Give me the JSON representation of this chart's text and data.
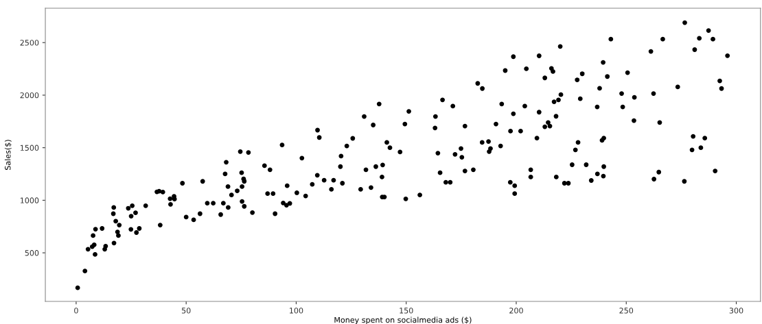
{
  "chart_data": {
    "type": "scatter",
    "xlabel": "Money spent on socialmedia ads ($)",
    "ylabel": "Sales($)",
    "xlim": [
      -14,
      311
    ],
    "ylim": [
      38,
      2827
    ],
    "xticks": [
      0,
      50,
      100,
      150,
      200,
      250,
      300
    ],
    "yticks": [
      500,
      1000,
      1500,
      2000,
      2500
    ],
    "marker": "circle",
    "grid": false,
    "series": [
      {
        "color": "#000000",
        "x": [
          0.7,
          4.0,
          5.4,
          7.3,
          8.2,
          8.6,
          7.7,
          8.8,
          11.8,
          13.0,
          13.4,
          17.1,
          16.9,
          18.0,
          19.6,
          18.8,
          19.2,
          17.2,
          23.7,
          25.5,
          25.0,
          27.0,
          24.9,
          28.7,
          27.4,
          31.6,
          36.7,
          37.7,
          39.4,
          38.2,
          42.9,
          44.5,
          42.7,
          44.7,
          48.3,
          50.0,
          53.4,
          56.3,
          57.5,
          59.6,
          62.3,
          65.7,
          66.9,
          69.1,
          68.2,
          67.7,
          69.0,
          70.6,
          73.2,
          75.2,
          76.1,
          76.4,
          75.4,
          75.4,
          76.4,
          80.1,
          74.6,
          78.3,
          85.6,
          88.1,
          87.0,
          89.5,
          90.4,
          94.1,
          95.6,
          97.1,
          95.9,
          100.3,
          102.6,
          104.3,
          107.3,
          109.6,
          112.7,
          116.0,
          117.0,
          120.4,
          120.1,
          121.0,
          129.3,
          131.7,
          134.0,
          136.2,
          139.3,
          139.0,
          139.1,
          140.1,
          147.2,
          149.8,
          156.2,
          164.4,
          165.4,
          168.0,
          170.0,
          172.2,
          175.3,
          176.7,
          180.5,
          187.7,
          197.3,
          199.3,
          199.3,
          206.6,
          206.6,
          218.2,
          221.9,
          223.7,
          225.4,
          231.8,
          234.1,
          236.9,
          239.6,
          239.8,
          262.6,
          264.8,
          276.4,
          290.4,
          93.6,
          109.7,
          110.5,
          123.0,
          125.7,
          130.9,
          135.0,
          137.7,
          141.2,
          142.6,
          149.4,
          151.2,
          163.1,
          163.3,
          166.5,
          171.2,
          174.9,
          176.7,
          182.5,
          184.6,
          184.5,
          187.4,
          188.3,
          192.9,
          190.8,
          193.4,
          195.0,
          198.7,
          198.7,
          197.4,
          204.6,
          210.4,
          203.9,
          202.0,
          209.4,
          210.4,
          213.0,
          216.0,
          216.7,
          220.0,
          220.3,
          219.2,
          217.2,
          218.1,
          214.5,
          213.0,
          215.3,
          226.9,
          228.1,
          227.7,
          230.0,
          229.1,
          237.9,
          236.8,
          239.5,
          241.4,
          243.0,
          239.0,
          239.8,
          247.9,
          248.4,
          250.6,
          253.7,
          253.5,
          261.2,
          262.4,
          265.2,
          266.6,
          273.4,
          276.6,
          281.1,
          283.2,
          287.4,
          289.4,
          296.0,
          292.5,
          293.3,
          280.4,
          285.7,
          279.9,
          283.9
        ],
        "values": [
          167,
          327,
          534,
          558,
          576,
          485,
          664,
          725,
          732,
          534,
          563,
          931,
          872,
          801,
          764,
          699,
          664,
          593,
          924,
          948,
          849,
          881,
          723,
          732,
          693,
          948,
          1080,
          1086,
          1078,
          764,
          961,
          1037,
          1015,
          1011,
          1162,
          840,
          814,
          872,
          1180,
          972,
          972,
          864,
          972,
          931,
          1362,
          1251,
          1130,
          1050,
          1089,
          1262,
          1203,
          1180,
          1130,
          989,
          942,
          883,
          1463,
          1455,
          1329,
          1290,
          1063,
          1063,
          872,
          974,
          953,
          970,
          1138,
          1071,
          1401,
          1041,
          1151,
          1238,
          1190,
          1104,
          1190,
          1420,
          1320,
          1162,
          1104,
          1290,
          1121,
          1320,
          1336,
          1221,
          1031,
          1031,
          1459,
          1013,
          1050,
          1448,
          1262,
          1171,
          1171,
          1437,
          1409,
          1279,
          1290,
          1463,
          1171,
          1138,
          1063,
          1290,
          1221,
          1221,
          1162,
          1162,
          1338,
          1338,
          1188,
          1251,
          1230,
          1320,
          1201,
          1268,
          1180,
          1279,
          1526,
          1667,
          1597,
          1517,
          1589,
          1797,
          1716,
          1916,
          1550,
          1500,
          1725,
          1846,
          1688,
          1797,
          1955,
          1896,
          1492,
          1706,
          2112,
          2063,
          1550,
          1559,
          1492,
          1517,
          1725,
          1916,
          2234,
          2366,
          1823,
          1658,
          2251,
          2374,
          1896,
          1658,
          1591,
          1838,
          2164,
          2255,
          2225,
          2463,
          2005,
          1955,
          1937,
          1799,
          1740,
          1699,
          1706,
          1479,
          1550,
          2145,
          2203,
          1966,
          2065,
          1888,
          2312,
          2177,
          2533,
          1570,
          1591,
          2015,
          1888,
          2214,
          1979,
          1758,
          2416,
          2015,
          1740,
          2533,
          2078,
          2690,
          2433,
          2541,
          2615,
          2533,
          2375,
          2136,
          2063,
          1608,
          1591,
          1479,
          1500
        ]
      }
    ]
  }
}
